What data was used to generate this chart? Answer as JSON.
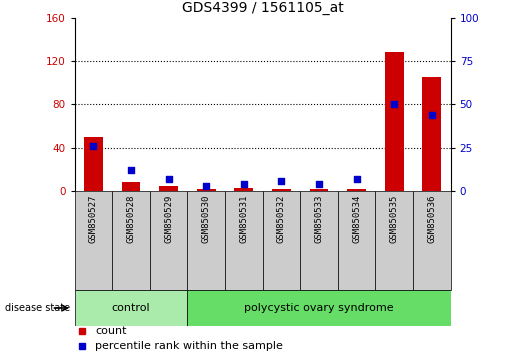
{
  "title": "GDS4399 / 1561105_at",
  "samples": [
    "GSM850527",
    "GSM850528",
    "GSM850529",
    "GSM850530",
    "GSM850531",
    "GSM850532",
    "GSM850533",
    "GSM850534",
    "GSM850535",
    "GSM850536"
  ],
  "count_values": [
    50,
    8,
    5,
    2,
    3,
    2,
    2,
    2,
    128,
    105
  ],
  "percentile_values": [
    26,
    12,
    7,
    3,
    4,
    6,
    4,
    7,
    50,
    44
  ],
  "ylim_left": [
    0,
    160
  ],
  "ylim_right": [
    0,
    100
  ],
  "yticks_left": [
    0,
    40,
    80,
    120,
    160
  ],
  "yticks_right": [
    0,
    25,
    50,
    75,
    100
  ],
  "n_control": 3,
  "n_total": 10,
  "control_label": "control",
  "disease_label": "polycystic ovary syndrome",
  "disease_state_label": "disease state",
  "legend1_label": "count",
  "legend2_label": "percentile rank within the sample",
  "bar_color": "#cc0000",
  "dot_color": "#0000cc",
  "control_bg": "#aaeaaa",
  "disease_bg": "#66dd66",
  "sample_bg": "#cccccc",
  "grid_color": "#000000",
  "title_fontsize": 10,
  "tick_fontsize": 7.5,
  "label_fontsize": 8
}
